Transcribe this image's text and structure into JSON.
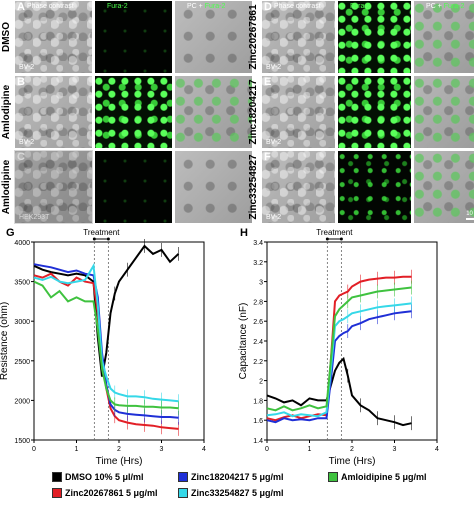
{
  "figure": {
    "micro_panels": {
      "left": {
        "column_headers": {
          "phase": "Phase contrast",
          "fura": "Fura-2",
          "pc_prefix": "PC",
          "pc_suffix": "Fura-2"
        },
        "rows": [
          {
            "letter": "A",
            "label": "DMSO",
            "cell_line": "BV-2"
          },
          {
            "letter": "B",
            "label": "Amlodipine",
            "cell_line": "BV-2"
          },
          {
            "letter": "C",
            "label": "Amlodipine",
            "cell_line": "HEK293T"
          }
        ]
      },
      "right": {
        "column_headers": {
          "phase": "Phase contrast",
          "fura": "Fura-2",
          "pc_prefix": "PC",
          "pc_suffix": "Fura-2"
        },
        "rows": [
          {
            "letter": "D",
            "label": "Zinc20267861",
            "cell_line": "BV-2"
          },
          {
            "letter": "E",
            "label": "Zinc18204217",
            "cell_line": "BV-2"
          },
          {
            "letter": "F",
            "label": "Zinc33254827",
            "cell_line": "BV-2",
            "scale": "10 μm"
          }
        ]
      }
    },
    "legend": [
      {
        "label": "DMSO 10% 5 μl/ml",
        "color": "#000000"
      },
      {
        "label": "Zinc18204217 5 μg/ml",
        "color": "#1f2fd6"
      },
      {
        "label": "Amloidipine 5 μg/ml",
        "color": "#3fc23f"
      },
      {
        "label": "Zinc20267861 5 μg/ml",
        "color": "#e21f26"
      },
      {
        "label": "Zinc33254827 5 μg/ml",
        "color": "#35d8e8"
      }
    ]
  },
  "chart_data": [
    {
      "panel": "G",
      "type": "line",
      "xlabel": "Time (Hrs)",
      "ylabel": "Resistance (ohm)",
      "xlim": [
        0,
        4
      ],
      "ylim": [
        1500,
        4000
      ],
      "xticks": [
        0,
        1,
        2,
        3,
        4
      ],
      "yticks": [
        1500,
        2000,
        2500,
        3000,
        3500,
        4000
      ],
      "treatment": {
        "label": "Treatment",
        "start": 1.42,
        "end": 1.75
      },
      "series": [
        {
          "color": "#000000",
          "x": [
            0,
            0.2,
            0.4,
            0.6,
            0.8,
            1.0,
            1.2,
            1.4,
            1.5,
            1.6,
            1.7,
            1.8,
            1.9,
            2.0,
            2.2,
            2.4,
            2.6,
            2.8,
            3.0,
            3.2,
            3.4
          ],
          "y": [
            3700,
            3650,
            3620,
            3600,
            3580,
            3600,
            3580,
            3500,
            2800,
            2300,
            2600,
            3100,
            3350,
            3500,
            3650,
            3800,
            3950,
            3850,
            3900,
            3750,
            3850
          ]
        },
        {
          "color": "#e21f26",
          "x": [
            0,
            0.2,
            0.4,
            0.6,
            0.8,
            1.0,
            1.2,
            1.4,
            1.5,
            1.6,
            1.7,
            1.8,
            1.9,
            2.0,
            2.2,
            2.4,
            2.6,
            2.8,
            3.0,
            3.2,
            3.4
          ],
          "y": [
            3580,
            3550,
            3600,
            3500,
            3450,
            3550,
            3500,
            3480,
            3100,
            2500,
            2150,
            1900,
            1800,
            1750,
            1720,
            1700,
            1690,
            1680,
            1660,
            1650,
            1640
          ]
        },
        {
          "color": "#1f2fd6",
          "x": [
            0,
            0.2,
            0.4,
            0.6,
            0.8,
            1.0,
            1.2,
            1.4,
            1.5,
            1.6,
            1.7,
            1.8,
            1.9,
            2.0,
            2.2,
            2.4,
            2.6,
            2.8,
            3.0,
            3.2,
            3.4
          ],
          "y": [
            3720,
            3700,
            3680,
            3650,
            3620,
            3640,
            3600,
            3580,
            3300,
            2600,
            2200,
            1950,
            1880,
            1850,
            1830,
            1820,
            1810,
            1800,
            1790,
            1790,
            1780
          ]
        },
        {
          "color": "#35d8e8",
          "x": [
            0,
            0.2,
            0.4,
            0.6,
            0.8,
            1.0,
            1.2,
            1.4,
            1.5,
            1.6,
            1.7,
            1.8,
            1.9,
            2.0,
            2.2,
            2.4,
            2.6,
            2.8,
            3.0,
            3.2,
            3.4
          ],
          "y": [
            3550,
            3520,
            3560,
            3500,
            3480,
            3500,
            3520,
            3700,
            3200,
            2500,
            2300,
            2150,
            2100,
            2080,
            2050,
            2050,
            2040,
            2020,
            2010,
            2000,
            1990
          ]
        },
        {
          "color": "#3fc23f",
          "x": [
            0,
            0.2,
            0.4,
            0.6,
            0.8,
            1.0,
            1.2,
            1.4,
            1.5,
            1.6,
            1.7,
            1.8,
            1.9,
            2.0,
            2.2,
            2.4,
            2.6,
            2.8,
            3.0,
            3.2,
            3.4
          ],
          "y": [
            3500,
            3450,
            3300,
            3380,
            3250,
            3300,
            3250,
            3250,
            2900,
            2400,
            2150,
            2000,
            1950,
            1940,
            1930,
            1930,
            1920,
            1920,
            1910,
            1910,
            1900
          ]
        }
      ]
    },
    {
      "panel": "H",
      "type": "line",
      "xlabel": "Time (Hrs)",
      "ylabel": "Capacitance (nF)",
      "xlim": [
        0,
        4
      ],
      "ylim": [
        1.4,
        3.4
      ],
      "xticks": [
        0,
        1,
        2,
        3,
        4
      ],
      "yticks": [
        1.4,
        1.6,
        1.8,
        2.0,
        2.2,
        2.4,
        2.6,
        2.8,
        3.0,
        3.2,
        3.4
      ],
      "treatment": {
        "label": "Treatment",
        "start": 1.42,
        "end": 1.75
      },
      "series": [
        {
          "color": "#000000",
          "x": [
            0,
            0.2,
            0.4,
            0.6,
            0.8,
            1.0,
            1.2,
            1.4,
            1.5,
            1.6,
            1.7,
            1.8,
            1.9,
            2.0,
            2.2,
            2.4,
            2.6,
            2.8,
            3.0,
            3.2,
            3.4
          ],
          "y": [
            1.85,
            1.82,
            1.78,
            1.8,
            1.75,
            1.82,
            1.8,
            1.8,
            1.95,
            2.1,
            2.18,
            2.22,
            2.05,
            1.85,
            1.75,
            1.7,
            1.62,
            1.6,
            1.58,
            1.55,
            1.57
          ]
        },
        {
          "color": "#e21f26",
          "x": [
            0,
            0.2,
            0.4,
            0.6,
            0.8,
            1.0,
            1.2,
            1.4,
            1.5,
            1.6,
            1.7,
            1.8,
            1.9,
            2.0,
            2.2,
            2.4,
            2.6,
            2.8,
            3.0,
            3.2,
            3.4
          ],
          "y": [
            1.62,
            1.6,
            1.63,
            1.65,
            1.62,
            1.64,
            1.66,
            1.65,
            2.2,
            2.8,
            2.86,
            2.88,
            2.9,
            2.95,
            3.0,
            3.02,
            3.03,
            3.04,
            3.04,
            3.05,
            3.05
          ]
        },
        {
          "color": "#1f2fd6",
          "x": [
            0,
            0.2,
            0.4,
            0.6,
            0.8,
            1.0,
            1.2,
            1.4,
            1.5,
            1.6,
            1.7,
            1.8,
            1.9,
            2.0,
            2.2,
            2.4,
            2.6,
            2.8,
            3.0,
            3.2,
            3.4
          ],
          "y": [
            1.6,
            1.58,
            1.62,
            1.6,
            1.61,
            1.6,
            1.62,
            1.62,
            2.0,
            2.4,
            2.45,
            2.48,
            2.5,
            2.55,
            2.58,
            2.62,
            2.64,
            2.66,
            2.68,
            2.69,
            2.7
          ]
        },
        {
          "color": "#35d8e8",
          "x": [
            0,
            0.2,
            0.4,
            0.6,
            0.8,
            1.0,
            1.2,
            1.4,
            1.5,
            1.6,
            1.7,
            1.8,
            1.9,
            2.0,
            2.2,
            2.4,
            2.6,
            2.8,
            3.0,
            3.2,
            3.4
          ],
          "y": [
            1.65,
            1.66,
            1.68,
            1.64,
            1.66,
            1.65,
            1.64,
            1.68,
            2.1,
            2.55,
            2.6,
            2.62,
            2.65,
            2.68,
            2.7,
            2.72,
            2.74,
            2.75,
            2.76,
            2.77,
            2.78
          ]
        },
        {
          "color": "#3fc23f",
          "x": [
            0,
            0.2,
            0.4,
            0.6,
            0.8,
            1.0,
            1.2,
            1.4,
            1.5,
            1.6,
            1.7,
            1.8,
            1.9,
            2.0,
            2.2,
            2.4,
            2.6,
            2.8,
            3.0,
            3.2,
            3.4
          ],
          "y": [
            1.72,
            1.7,
            1.74,
            1.7,
            1.72,
            1.75,
            1.72,
            1.74,
            2.2,
            2.65,
            2.72,
            2.76,
            2.8,
            2.84,
            2.86,
            2.88,
            2.9,
            2.91,
            2.92,
            2.93,
            2.94
          ]
        }
      ]
    }
  ],
  "chart_panel_letters": [
    "G",
    "H"
  ]
}
